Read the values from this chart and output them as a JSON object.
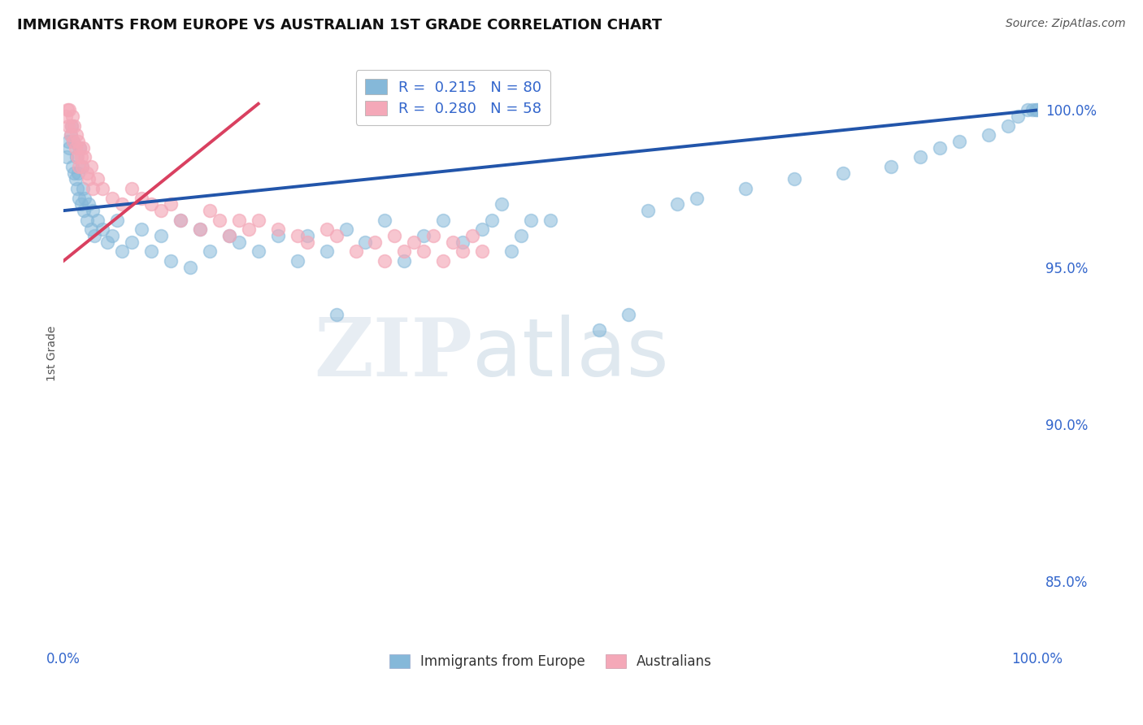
{
  "title": "IMMIGRANTS FROM EUROPE VS AUSTRALIAN 1ST GRADE CORRELATION CHART",
  "source": "Source: ZipAtlas.com",
  "ylabel": "1st Grade",
  "blue_R": 0.215,
  "blue_N": 80,
  "pink_R": 0.28,
  "pink_N": 58,
  "blue_color": "#85B8D9",
  "pink_color": "#F4A8B8",
  "blue_line_color": "#2255AA",
  "pink_line_color": "#D94060",
  "legend_blue_label": "Immigrants from Europe",
  "legend_pink_label": "Australians",
  "background_color": "#ffffff",
  "grid_color": "#cccccc",
  "tick_color": "#3366CC",
  "xmin": 0.0,
  "xmax": 100.0,
  "ymin": 83.0,
  "ymax": 101.5,
  "watermark_zip": "ZIP",
  "watermark_atlas": "atlas",
  "blue_scatter_x": [
    0.3,
    0.5,
    0.6,
    0.7,
    0.8,
    0.9,
    1.0,
    1.1,
    1.2,
    1.3,
    1.4,
    1.5,
    1.6,
    1.7,
    1.8,
    1.9,
    2.0,
    2.1,
    2.2,
    2.4,
    2.6,
    2.8,
    3.0,
    3.2,
    3.5,
    4.0,
    4.5,
    5.0,
    5.5,
    6.0,
    7.0,
    8.0,
    9.0,
    10.0,
    11.0,
    12.0,
    13.0,
    14.0,
    15.0,
    17.0,
    18.0,
    20.0,
    22.0,
    24.0,
    25.0,
    27.0,
    29.0,
    31.0,
    33.0,
    35.0,
    37.0,
    39.0,
    41.0,
    43.0,
    44.0,
    45.0,
    46.0,
    47.0,
    48.0,
    50.0,
    55.0,
    58.0,
    60.0,
    63.0,
    65.0,
    70.0,
    75.0,
    80.0,
    85.0,
    88.0,
    90.0,
    92.0,
    95.0,
    97.0,
    98.0,
    99.0,
    99.5,
    99.8,
    100.0,
    28.0
  ],
  "blue_scatter_y": [
    98.5,
    99.0,
    98.8,
    99.2,
    99.5,
    98.2,
    99.0,
    98.0,
    97.8,
    98.5,
    97.5,
    98.0,
    97.2,
    98.8,
    97.0,
    98.2,
    97.5,
    96.8,
    97.2,
    96.5,
    97.0,
    96.2,
    96.8,
    96.0,
    96.5,
    96.2,
    95.8,
    96.0,
    96.5,
    95.5,
    95.8,
    96.2,
    95.5,
    96.0,
    95.2,
    96.5,
    95.0,
    96.2,
    95.5,
    96.0,
    95.8,
    95.5,
    96.0,
    95.2,
    96.0,
    95.5,
    96.2,
    95.8,
    96.5,
    95.2,
    96.0,
    96.5,
    95.8,
    96.2,
    96.5,
    97.0,
    95.5,
    96.0,
    96.5,
    96.5,
    93.0,
    93.5,
    96.8,
    97.0,
    97.2,
    97.5,
    97.8,
    98.0,
    98.2,
    98.5,
    98.8,
    99.0,
    99.2,
    99.5,
    99.8,
    100.0,
    100.0,
    100.0,
    100.0,
    93.5
  ],
  "pink_scatter_x": [
    0.2,
    0.4,
    0.5,
    0.6,
    0.7,
    0.8,
    0.9,
    1.0,
    1.1,
    1.2,
    1.3,
    1.4,
    1.5,
    1.6,
    1.7,
    1.8,
    1.9,
    2.0,
    2.2,
    2.4,
    2.6,
    2.8,
    3.0,
    3.5,
    4.0,
    5.0,
    6.0,
    7.0,
    8.0,
    9.0,
    10.0,
    11.0,
    12.0,
    14.0,
    15.0,
    16.0,
    17.0,
    18.0,
    19.0,
    20.0,
    22.0,
    24.0,
    25.0,
    27.0,
    28.0,
    30.0,
    32.0,
    33.0,
    34.0,
    35.0,
    36.0,
    37.0,
    38.0,
    39.0,
    40.0,
    41.0,
    42.0,
    43.0
  ],
  "pink_scatter_y": [
    99.8,
    100.0,
    99.5,
    100.0,
    99.2,
    99.5,
    99.8,
    99.0,
    99.5,
    98.8,
    99.2,
    98.5,
    99.0,
    98.2,
    98.8,
    98.5,
    98.2,
    98.8,
    98.5,
    98.0,
    97.8,
    98.2,
    97.5,
    97.8,
    97.5,
    97.2,
    97.0,
    97.5,
    97.2,
    97.0,
    96.8,
    97.0,
    96.5,
    96.2,
    96.8,
    96.5,
    96.0,
    96.5,
    96.2,
    96.5,
    96.2,
    96.0,
    95.8,
    96.2,
    96.0,
    95.5,
    95.8,
    95.2,
    96.0,
    95.5,
    95.8,
    95.5,
    96.0,
    95.2,
    95.8,
    95.5,
    96.0,
    95.5
  ]
}
